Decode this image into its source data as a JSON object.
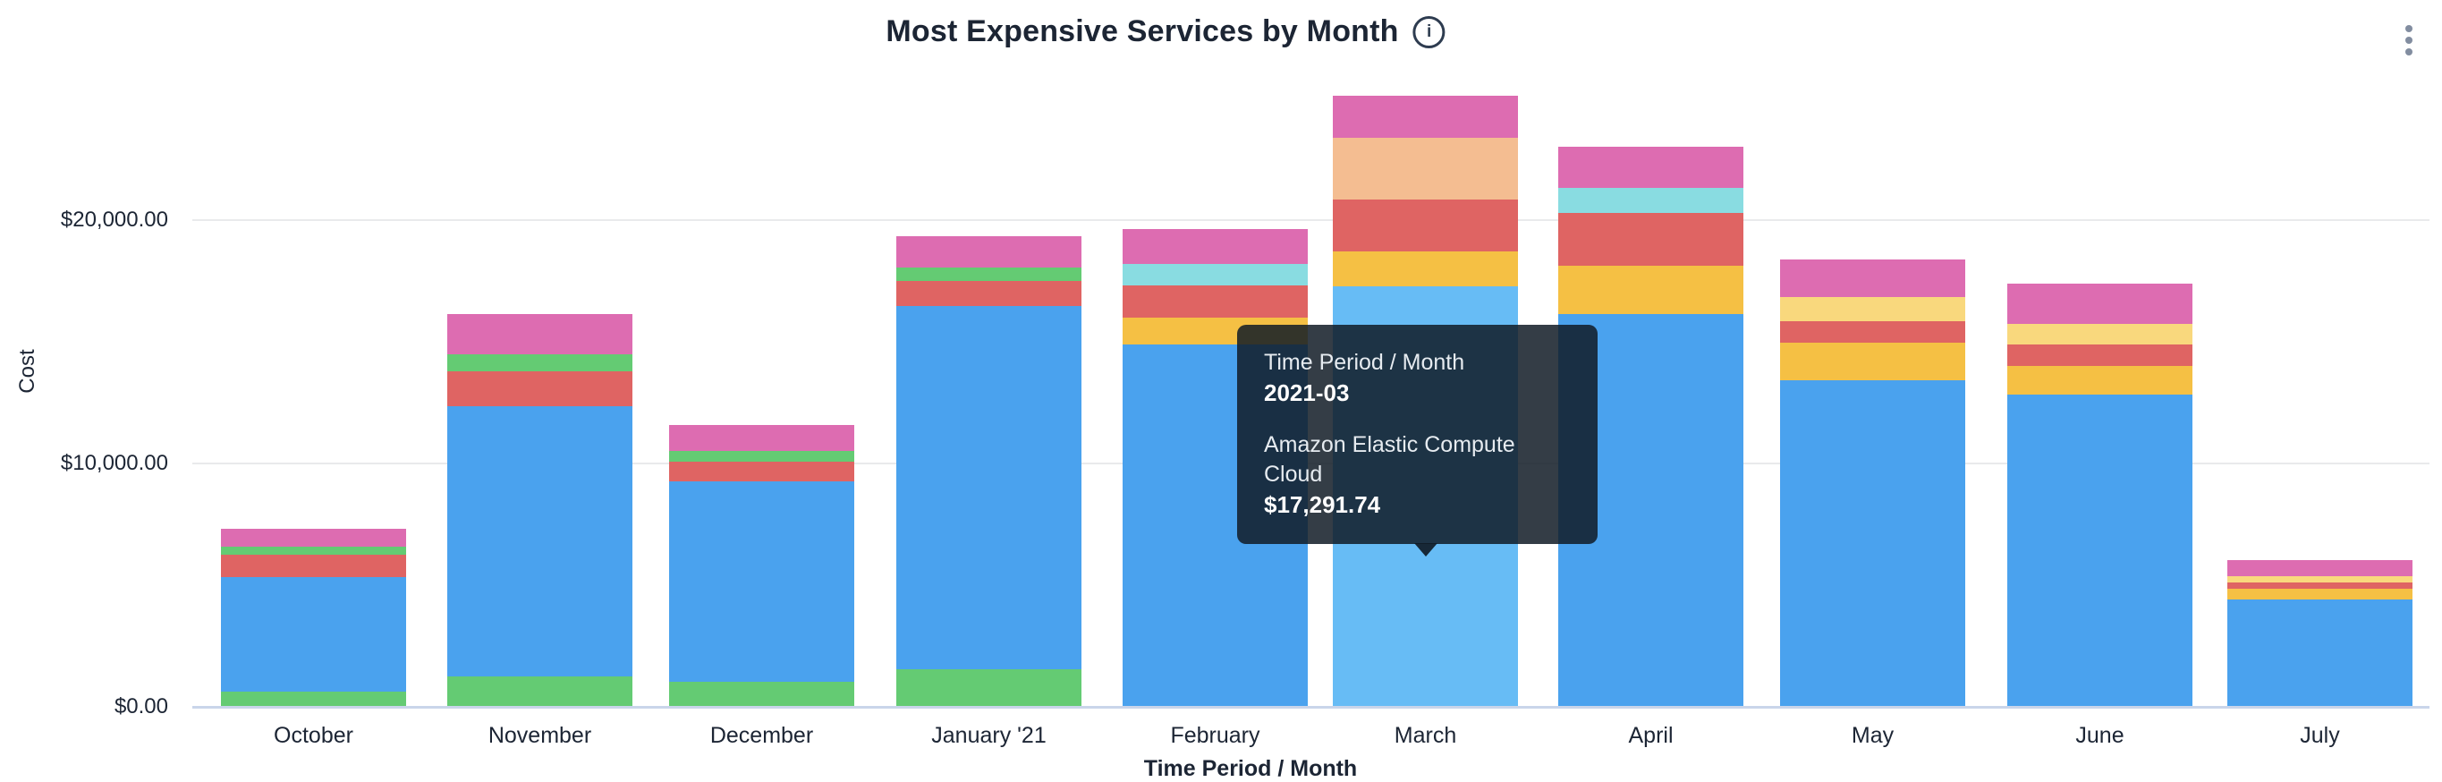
{
  "header": {
    "title": "Most Expensive Services by Month",
    "info_glyph": "i"
  },
  "tooltip": {
    "dimension_label": "Time Period / Month",
    "dimension_value": "2021-03",
    "series_label": "Amazon Elastic Compute Cloud",
    "series_value": "$17,291.74"
  },
  "chart_data": {
    "type": "bar",
    "stacked": true,
    "title": "Most Expensive Services by Month",
    "xlabel": "Time Period / Month",
    "ylabel": "Cost",
    "ylim": [
      0,
      26000
    ],
    "grid": "horizontal",
    "legend": "none",
    "y_ticks": [
      {
        "label": "$0.00",
        "value": 0
      },
      {
        "label": "$10,000.00",
        "value": 10000
      },
      {
        "label": "$20,000.00",
        "value": 20000
      }
    ],
    "categories": [
      "October",
      "November",
      "December",
      "January '21",
      "February",
      "March",
      "April",
      "May",
      "June",
      "July"
    ],
    "highlighted_month": "2021-03",
    "highlighted_service": "Amazon Elastic Compute Cloud",
    "highlighted_value": 17291.74,
    "palette": {
      "blue": "#4aa2ee",
      "blue_highlight": "#67bcf5",
      "green": "#64cb73",
      "red": "#df6463",
      "pink": "#dd6cb1",
      "teal": "#89dce1",
      "orange": "#f5c044",
      "pale_yellow": "#f9d87d",
      "peach": "#f4bd91"
    },
    "months": [
      {
        "label": "October",
        "total": 7320,
        "segments": [
          {
            "color": "green",
            "value": 625
          },
          {
            "color": "blue",
            "value": 4700
          },
          {
            "color": "red",
            "value": 925
          },
          {
            "color": "green",
            "value": 330
          },
          {
            "color": "pink",
            "value": 740
          }
        ]
      },
      {
        "label": "November",
        "total": 16150,
        "segments": [
          {
            "color": "green",
            "value": 1260
          },
          {
            "color": "blue",
            "value": 11100
          },
          {
            "color": "red",
            "value": 1425
          },
          {
            "color": "green",
            "value": 690
          },
          {
            "color": "pink",
            "value": 1675
          }
        ]
      },
      {
        "label": "December",
        "total": 11590,
        "segments": [
          {
            "color": "green",
            "value": 1020
          },
          {
            "color": "blue",
            "value": 8260
          },
          {
            "color": "red",
            "value": 810
          },
          {
            "color": "green",
            "value": 420
          },
          {
            "color": "pink",
            "value": 1080
          }
        ]
      },
      {
        "label": "January '21",
        "total": 19330,
        "segments": [
          {
            "color": "green",
            "value": 1560
          },
          {
            "color": "blue",
            "value": 14920
          },
          {
            "color": "red",
            "value": 1005
          },
          {
            "color": "green",
            "value": 555
          },
          {
            "color": "pink",
            "value": 1290
          }
        ]
      },
      {
        "label": "February",
        "total": 19630,
        "segments": [
          {
            "color": "blue",
            "value": 14900
          },
          {
            "color": "orange",
            "value": 1080
          },
          {
            "color": "red",
            "value": 1325
          },
          {
            "color": "teal",
            "value": 880
          },
          {
            "color": "pink",
            "value": 1445
          }
        ]
      },
      {
        "label": "March",
        "total": 25112,
        "segments": [
          {
            "color": "blue_highlight",
            "value": 17291.74
          },
          {
            "color": "orange",
            "value": 1435
          },
          {
            "color": "red",
            "value": 2130
          },
          {
            "color": "peach",
            "value": 2525
          },
          {
            "color": "pink",
            "value": 1730
          }
        ]
      },
      {
        "label": "April",
        "total": 23010,
        "segments": [
          {
            "color": "blue",
            "value": 16125
          },
          {
            "color": "orange",
            "value": 2005
          },
          {
            "color": "red",
            "value": 2170
          },
          {
            "color": "teal",
            "value": 1020
          },
          {
            "color": "pink",
            "value": 1690
          }
        ]
      },
      {
        "label": "May",
        "total": 18380,
        "segments": [
          {
            "color": "blue",
            "value": 13415
          },
          {
            "color": "orange",
            "value": 1535
          },
          {
            "color": "red",
            "value": 880
          },
          {
            "color": "pale_yellow",
            "value": 1015
          },
          {
            "color": "pink",
            "value": 1535
          }
        ]
      },
      {
        "label": "June",
        "total": 17400,
        "segments": [
          {
            "color": "blue",
            "value": 12840
          },
          {
            "color": "orange",
            "value": 1155
          },
          {
            "color": "red",
            "value": 895
          },
          {
            "color": "pale_yellow",
            "value": 855
          },
          {
            "color": "pink",
            "value": 1655
          }
        ]
      },
      {
        "label": "July",
        "total": 6030,
        "segments": [
          {
            "color": "blue",
            "value": 4420
          },
          {
            "color": "orange",
            "value": 420
          },
          {
            "color": "red",
            "value": 280
          },
          {
            "color": "pale_yellow",
            "value": 235
          },
          {
            "color": "pink",
            "value": 675
          }
        ]
      }
    ]
  }
}
